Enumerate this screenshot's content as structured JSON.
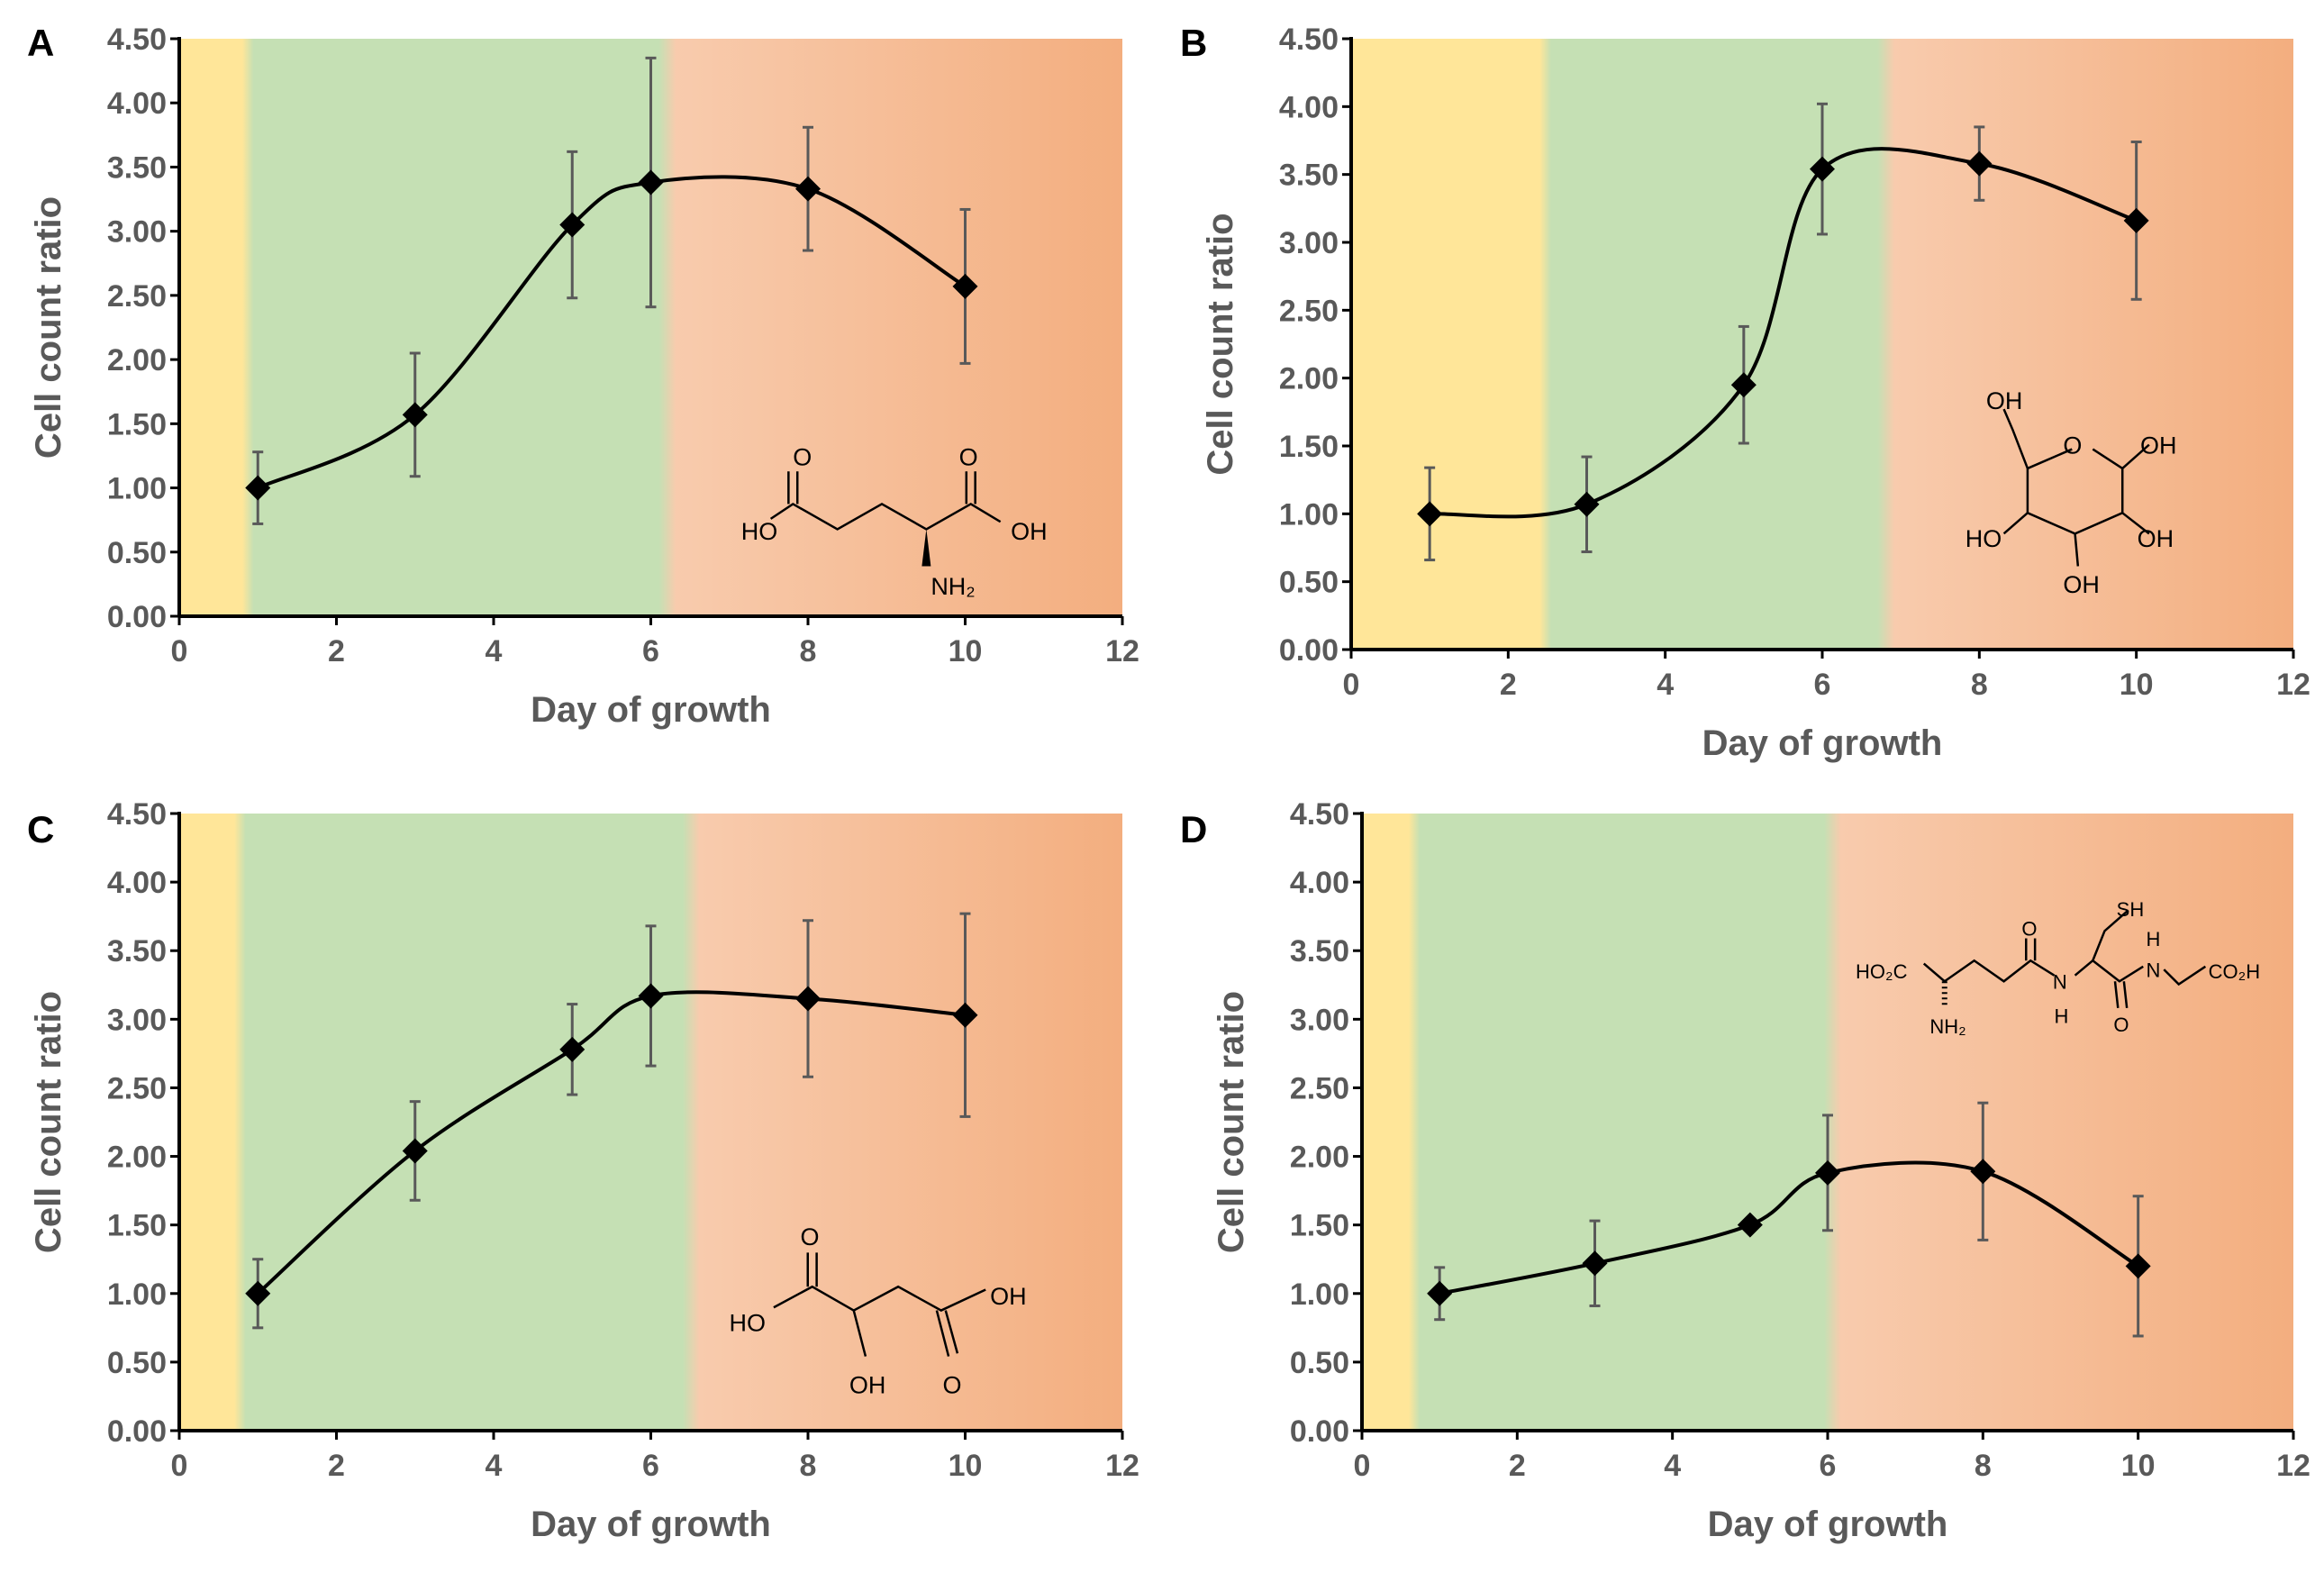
{
  "chart_data": [
    {
      "panel": "A",
      "type": "line",
      "xlabel": "Day of growth",
      "ylabel": "Cell count ratio",
      "xlim": [
        0,
        12
      ],
      "ylim": [
        0,
        4.5
      ],
      "xticks": [
        "0",
        "2",
        "4",
        "6",
        "8",
        "10",
        "12"
      ],
      "yticks": [
        "0.00",
        "0.50",
        "1.00",
        "1.50",
        "2.00",
        "2.50",
        "3.00",
        "3.50",
        "4.00",
        "4.50"
      ],
      "x": [
        1,
        3,
        5,
        6,
        8,
        10
      ],
      "y": [
        1.0,
        1.57,
        3.05,
        3.38,
        3.33,
        2.57
      ],
      "error": [
        0.28,
        0.48,
        0.57,
        0.97,
        0.48,
        0.6
      ],
      "phases": {
        "lag_end": 0.85,
        "growth_end": 6.2
      },
      "structure_labels": [
        "O",
        "O",
        "HO",
        "OH",
        "NH₂"
      ]
    },
    {
      "panel": "B",
      "type": "line",
      "xlabel": "Day of growth",
      "ylabel": "Cell count ratio",
      "xlim": [
        0,
        12
      ],
      "ylim": [
        0,
        4.5
      ],
      "xticks": [
        "0",
        "2",
        "4",
        "6",
        "8",
        "10",
        "12"
      ],
      "yticks": [
        "0.00",
        "0.50",
        "1.00",
        "1.50",
        "2.00",
        "2.50",
        "3.00",
        "3.50",
        "4.00",
        "4.50"
      ],
      "x": [
        1,
        3,
        5,
        6,
        8,
        10
      ],
      "y": [
        1.0,
        1.07,
        1.95,
        3.54,
        3.58,
        3.16
      ],
      "error": [
        0.34,
        0.35,
        0.43,
        0.48,
        0.27,
        0.58
      ],
      "phases": {
        "lag_end": 2.45,
        "growth_end": 6.8
      },
      "structure_labels": [
        "OH",
        "O",
        "OH",
        "HO",
        "OH",
        "OH"
      ]
    },
    {
      "panel": "C",
      "type": "line",
      "xlabel": "Day of growth",
      "ylabel": "Cell count ratio",
      "xlim": [
        0,
        12
      ],
      "ylim": [
        0,
        4.5
      ],
      "xticks": [
        "0",
        "2",
        "4",
        "6",
        "8",
        "10",
        "12"
      ],
      "yticks": [
        "0.00",
        "0.50",
        "1.00",
        "1.50",
        "2.00",
        "2.50",
        "3.00",
        "3.50",
        "4.00",
        "4.50"
      ],
      "x": [
        1,
        3,
        5,
        6,
        8,
        10
      ],
      "y": [
        1.0,
        2.04,
        2.78,
        3.17,
        3.15,
        3.03
      ],
      "error": [
        0.25,
        0.36,
        0.33,
        0.51,
        0.57,
        0.74
      ],
      "phases": {
        "lag_end": 0.75,
        "growth_end": 6.5
      },
      "structure_labels": [
        "O",
        "HO",
        "OH",
        "OH",
        "O"
      ]
    },
    {
      "panel": "D",
      "type": "line",
      "xlabel": "Day of growth",
      "ylabel": "Cell count ratio",
      "xlim": [
        0,
        12
      ],
      "ylim": [
        0,
        4.5
      ],
      "xticks": [
        "0",
        "2",
        "4",
        "6",
        "8",
        "10",
        "12"
      ],
      "yticks": [
        "0.00",
        "0.50",
        "1.00",
        "1.50",
        "2.00",
        "2.50",
        "3.00",
        "3.50",
        "4.00",
        "4.50"
      ],
      "x": [
        1,
        3,
        5,
        6,
        8,
        10
      ],
      "y": [
        1.0,
        1.22,
        1.5,
        1.88,
        1.89,
        1.2
      ],
      "error": [
        0.19,
        0.31,
        0.04,
        0.42,
        0.5,
        0.51
      ],
      "phases": {
        "lag_end": 0.65,
        "growth_end": 6.05
      },
      "structure_labels": [
        "HO₂C",
        "NH₂",
        "O",
        "N",
        "H",
        "SH",
        "H",
        "N",
        "O",
        "CO₂H"
      ]
    }
  ],
  "colors": {
    "lag": "#FFE699",
    "growth": "#C5E0B4",
    "stationary_start": "#F8CBAD",
    "stationary_end": "#F3AE7F",
    "line": "#000000",
    "error": "#595959",
    "axis": "#000000"
  }
}
